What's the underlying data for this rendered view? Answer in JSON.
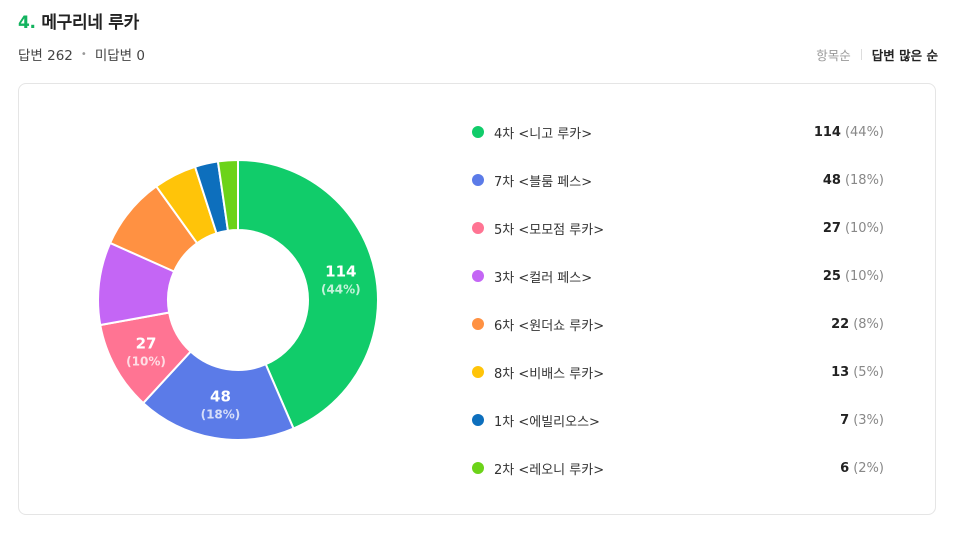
{
  "question": {
    "number": "4.",
    "title": "메구리네 루카"
  },
  "stats": {
    "answered": "답변 262",
    "separator": "•",
    "unanswered": "미답변 0"
  },
  "sort": {
    "options": [
      "항목순",
      "답변 많은 순"
    ],
    "active": "답변 많은 순"
  },
  "chart_data": {
    "type": "pie",
    "variant": "donut",
    "total": 262,
    "slices": [
      {
        "label": "4차 <니고 루카>",
        "value": 114,
        "percent": "44%",
        "color": "#11cc6a"
      },
      {
        "label": "7차 <블룸 페스>",
        "value": 48,
        "percent": "18%",
        "color": "#5b7be8"
      },
      {
        "label": "5차 <모모점 루카>",
        "value": 27,
        "percent": "10%",
        "color": "#ff7493"
      },
      {
        "label": "3차 <컬러 페스>",
        "value": 25,
        "percent": "10%",
        "color": "#c466f5"
      },
      {
        "label": "6차 <원더쇼 루카>",
        "value": 22,
        "percent": "8%",
        "color": "#ff9142"
      },
      {
        "label": "8차 <비배스 루카>",
        "value": 13,
        "percent": "5%",
        "color": "#ffc409"
      },
      {
        "label": "1차 <에빌리오스>",
        "value": 7,
        "percent": "3%",
        "color": "#0d6fbd"
      },
      {
        "label": "2차 <레오니 루카>",
        "value": 6,
        "percent": "2%",
        "color": "#6cd319"
      }
    ],
    "inner_labels_shown_for": [
      0,
      1,
      2
    ],
    "legend_placement": "right"
  }
}
